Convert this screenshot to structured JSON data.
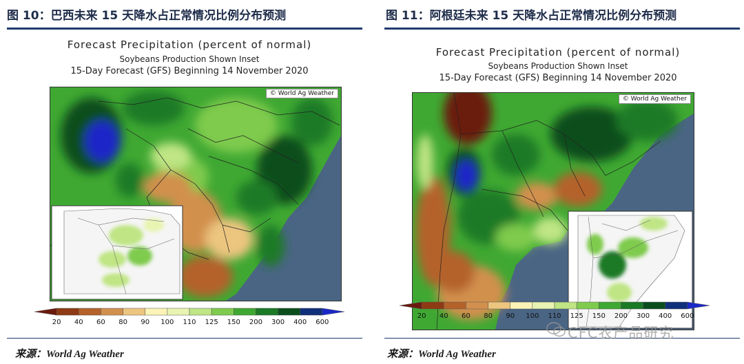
{
  "figures": [
    {
      "title": "图 10：巴西未来 15 天降水占正常情况比例分布预测",
      "map_title": "Forecast Precipitation (percent of normal)",
      "map_subtitle": "Soybeans Production Shown Inset",
      "map_period": "15-Day Forecast (GFS) Beginning 14 November 2020",
      "credit": "© World Ag Weather",
      "source": "来源：World Ag Weather"
    },
    {
      "title": "图 11：阿根廷未来 15 天降水占正常情况比例分布预测",
      "map_title": "Forecast Precipitation (percent of normal)",
      "map_subtitle": "Soybeans Production Shown Inset",
      "map_period": "15-Day Forecast (GFS) Beginning 14 November 2020",
      "credit": "© World Ag Weather",
      "source": "来源：World Ag Weather"
    }
  ],
  "legend": {
    "labels": [
      "20",
      "40",
      "60",
      "80",
      "90",
      "100",
      "110",
      "125",
      "150",
      "200",
      "300",
      "400",
      "600"
    ],
    "colors": [
      "#6b1a0e",
      "#8e3a14",
      "#b4622a",
      "#d2904e",
      "#ecc57f",
      "#fbf4b6",
      "#e8f4b2",
      "#bfe584",
      "#7fcb4e",
      "#3fa832",
      "#1b7a26",
      "#0b4e1e",
      "#102f7a",
      "#1a28c8"
    ]
  },
  "watermark": "CFC农产品研究"
}
